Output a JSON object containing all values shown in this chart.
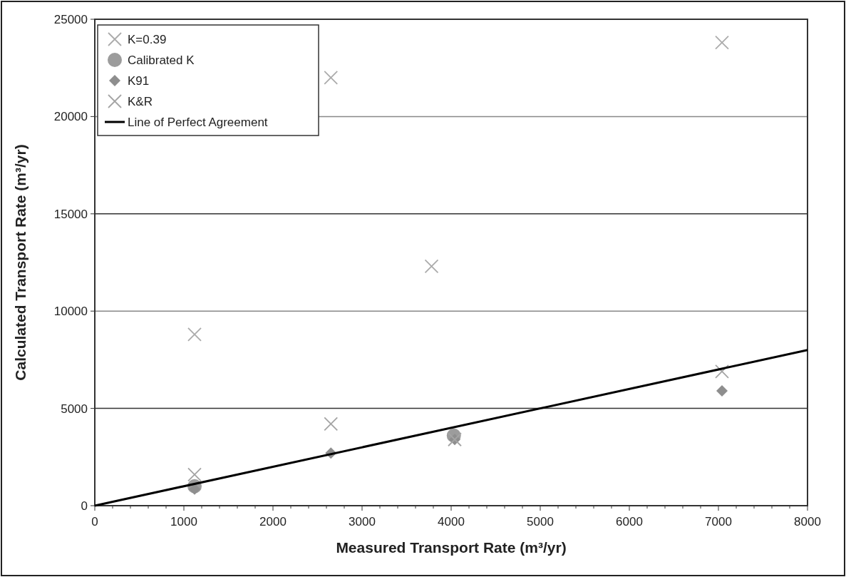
{
  "chart_data": {
    "type": "scatter",
    "xlabel": "Measured Transport Rate (m³/yr)",
    "ylabel": "Calculated Transport Rate (m³/yr)",
    "xlim": [
      0,
      8000
    ],
    "xticks": [
      0,
      1000,
      2000,
      3000,
      4000,
      5000,
      6000,
      7000,
      8000
    ],
    "ylim": [
      0,
      25000
    ],
    "yticks": [
      0,
      5000,
      10000,
      15000,
      20000,
      25000
    ],
    "grid": "y",
    "legend": "top left",
    "series": [
      {
        "name": "K=0.39",
        "color": "#ababab",
        "marker": "cross",
        "x": [
          1120,
          2650,
          3780,
          7040
        ],
        "values": [
          8800,
          22000,
          12300,
          23800
        ]
      },
      {
        "name": "Calibrated K",
        "color": "#9c9c9c",
        "marker": "circle",
        "x": [
          1120,
          4030
        ],
        "values": [
          1000,
          3600
        ]
      },
      {
        "name": "K91",
        "color": "#8e8e8e",
        "marker": "diamond",
        "x": [
          1120,
          2650,
          4040,
          7040
        ],
        "values": [
          850,
          2700,
          3400,
          5900
        ]
      },
      {
        "name": "K&R",
        "color": "#a4a4a4",
        "marker": "cross",
        "x": [
          1120,
          2650,
          4040,
          7040
        ],
        "values": [
          1600,
          4200,
          3400,
          6900
        ]
      },
      {
        "name": "Line of Perfect Agreement",
        "type": "line",
        "color": "#000000",
        "marker": "none",
        "x": [
          0,
          8000
        ],
        "values": [
          0,
          8000
        ]
      }
    ]
  }
}
